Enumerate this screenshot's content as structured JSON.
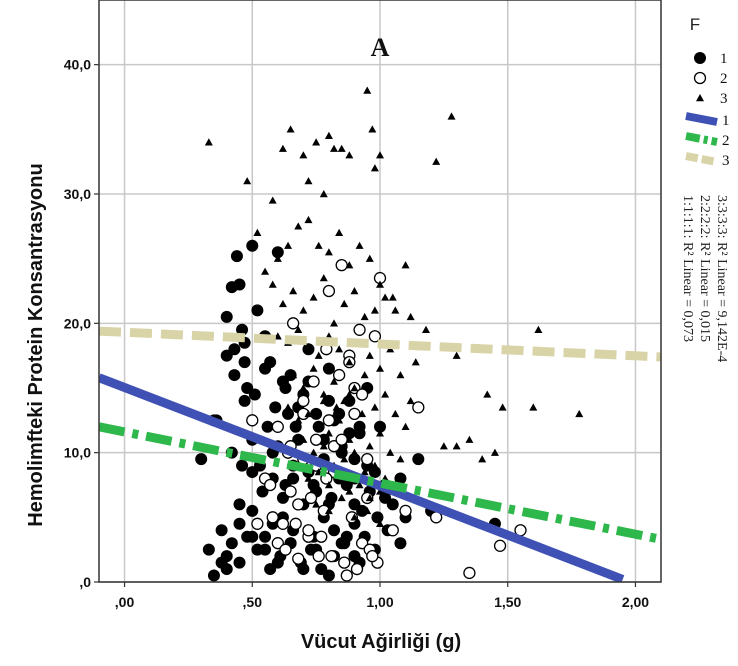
{
  "chart_data": {
    "type": "scatter",
    "title": "A",
    "xlabel": "Vücut Ağirliği (g)",
    "ylabel": "Hemolimfteki Protein Konsantrasyonu",
    "xlim": [
      -0.1,
      2.1
    ],
    "ylim": [
      0,
      45
    ],
    "xticks": [
      0,
      0.5,
      1.0,
      1.5,
      2.0
    ],
    "xtick_labels": [
      ",00",
      ",50",
      "1,00",
      "1,50",
      "2,00"
    ],
    "yticks": [
      0,
      10,
      20,
      30,
      40
    ],
    "ytick_labels": [
      ",0",
      "10,0",
      "20,0",
      "30,0",
      "40,0"
    ],
    "grid": true,
    "legend": {
      "title": "F",
      "placement": "right",
      "points": [
        {
          "label": "1",
          "marker": "filled-circle"
        },
        {
          "label": "2",
          "marker": "open-circle"
        },
        {
          "label": "3",
          "marker": "triangle"
        }
      ],
      "lines": [
        {
          "label": "1",
          "color": "#3f51b5",
          "style": "solid"
        },
        {
          "label": "2",
          "color": "#2eb84b",
          "style": "dash-dot"
        },
        {
          "label": "3",
          "color": "#d9d3a8",
          "style": "dashed"
        }
      ]
    },
    "r2_labels": [
      "1:1:1:1: R² Linear = 0,073",
      "2:2:2:2: R² Linear = 0,015",
      "3:3:3:3: R² Linear = 9,142E-4"
    ],
    "fit_lines": [
      {
        "group": "1",
        "color": "#3f51b5",
        "style": "solid",
        "x": [
          -0.1,
          1.95
        ],
        "y": [
          15.8,
          0.2
        ]
      },
      {
        "group": "2",
        "color": "#2eb84b",
        "style": "dash-dot",
        "x": [
          -0.1,
          2.1
        ],
        "y": [
          12.0,
          3.3
        ]
      },
      {
        "group": "3",
        "color": "#d9d3a8",
        "style": "dashed",
        "x": [
          -0.1,
          2.1
        ],
        "y": [
          19.4,
          17.4
        ]
      }
    ],
    "series": [
      {
        "name": "1",
        "marker": "filled-circle",
        "x": [
          0.33,
          0.35,
          0.38,
          0.4,
          0.42,
          0.44,
          0.45,
          0.46,
          0.47,
          0.48,
          0.5,
          0.52,
          0.55,
          0.57,
          0.6,
          0.62,
          0.64,
          0.65,
          0.67,
          0.7,
          0.72,
          0.75,
          0.78,
          0.8,
          0.82,
          0.85,
          0.88,
          0.9,
          0.92,
          0.95,
          0.98,
          1.0,
          1.02,
          1.05,
          1.08,
          1.1,
          1.15,
          0.36,
          0.4,
          0.43,
          0.47,
          0.5,
          0.53,
          0.56,
          0.58,
          0.6,
          0.63,
          0.66,
          0.68,
          0.72,
          0.75,
          0.78,
          0.81,
          0.84,
          0.87,
          0.9,
          0.93,
          0.96,
          0.99,
          1.02,
          0.38,
          0.42,
          0.45,
          0.5,
          0.55,
          0.58,
          0.62,
          0.66,
          0.7,
          0.74,
          0.78,
          0.82,
          0.86,
          0.9,
          0.94,
          0.98,
          1.03,
          1.08,
          1.2,
          1.45,
          0.4,
          0.45,
          0.48,
          0.52,
          0.57,
          0.61,
          0.65,
          0.69,
          0.73,
          0.77,
          0.82,
          0.87,
          0.92,
          0.97,
          0.42,
          0.46,
          0.5,
          0.54,
          0.58,
          0.62,
          0.66,
          0.7,
          0.74,
          0.8,
          0.85,
          0.9,
          0.95,
          0.4,
          0.43,
          0.47,
          0.51,
          0.55,
          0.59,
          0.63,
          0.68,
          0.72,
          0.76,
          0.8,
          0.84,
          0.88,
          0.92,
          0.3,
          0.35,
          0.45,
          0.5,
          0.55,
          0.6,
          0.65,
          0.7,
          0.75,
          0.8,
          0.85,
          0.9
        ],
        "y": [
          2.5,
          0.5,
          1.5,
          1.0,
          22.8,
          25.2,
          23.0,
          19.5,
          17.0,
          15.0,
          26.0,
          21.0,
          19.0,
          17.0,
          25.5,
          15.5,
          13.0,
          16.0,
          12.0,
          14.5,
          18.0,
          13.0,
          11.0,
          16.5,
          12.5,
          10.0,
          14.0,
          9.5,
          11.5,
          15.0,
          8.5,
          12.0,
          7.0,
          6.0,
          8.0,
          5.0,
          9.5,
          12.5,
          20.5,
          18.0,
          14.0,
          11.0,
          9.0,
          12.0,
          8.0,
          10.5,
          7.5,
          9.0,
          11.0,
          8.5,
          7.0,
          9.5,
          6.5,
          8.0,
          7.5,
          6.0,
          5.5,
          7.0,
          5.0,
          6.5,
          4.0,
          3.0,
          6.0,
          5.5,
          3.5,
          4.5,
          5.0,
          4.0,
          6.0,
          3.5,
          5.0,
          4.0,
          3.0,
          4.5,
          3.5,
          2.5,
          4.0,
          3.0,
          5.5,
          4.5,
          2.0,
          1.5,
          3.5,
          2.5,
          1.0,
          2.0,
          3.0,
          1.5,
          2.5,
          1.0,
          2.0,
          3.5,
          1.5,
          2.0,
          10.0,
          9.0,
          8.5,
          7.0,
          10.0,
          6.5,
          8.0,
          9.5,
          7.5,
          6.0,
          10.5,
          8.0,
          9.0,
          17.5,
          16.0,
          18.5,
          14.5,
          16.5,
          13.5,
          15.0,
          13.5,
          15.5,
          12.0,
          14.0,
          13.0,
          11.5,
          12.0,
          9.5,
          12.5,
          4.5,
          3.5,
          2.5,
          1.5,
          3.0,
          1.0,
          2.5,
          0.5,
          3.0,
          2.0
        ]
      },
      {
        "name": "2",
        "marker": "open-circle",
        "x": [
          0.5,
          0.55,
          0.58,
          0.62,
          0.65,
          0.68,
          0.7,
          0.72,
          0.75,
          0.78,
          0.8,
          0.82,
          0.85,
          0.88,
          0.9,
          0.92,
          0.95,
          0.98,
          1.0,
          1.05,
          1.1,
          1.15,
          1.22,
          1.35,
          1.47,
          1.55,
          0.52,
          0.57,
          0.6,
          0.64,
          0.67,
          0.7,
          0.73,
          0.76,
          0.79,
          0.82,
          0.86,
          0.89,
          0.93,
          0.96,
          0.99,
          1.02,
          0.6,
          0.65,
          0.7,
          0.75,
          0.8,
          0.85,
          0.9,
          0.95,
          0.63,
          0.68,
          0.72,
          0.77,
          0.81,
          0.87,
          0.91,
          0.97,
          0.66,
          0.74,
          0.79,
          0.84,
          0.88,
          0.93
        ],
        "y": [
          12.5,
          8.0,
          5.0,
          4.5,
          7.0,
          6.0,
          9.5,
          3.5,
          11.0,
          5.5,
          22.5,
          8.5,
          24.5,
          17.5,
          15.0,
          19.5,
          6.5,
          19.0,
          23.5,
          4.0,
          5.5,
          13.5,
          5.0,
          0.7,
          2.8,
          4.0,
          4.5,
          7.5,
          3.0,
          10.0,
          4.5,
          13.0,
          6.5,
          2.0,
          8.0,
          10.5,
          1.5,
          5.0,
          3.0,
          2.5,
          1.5,
          7.5,
          12.0,
          10.5,
          14.0,
          9.0,
          12.5,
          11.0,
          13.0,
          9.5,
          2.5,
          1.8,
          4.0,
          3.5,
          2.0,
          0.5,
          1.0,
          2.0,
          20.0,
          15.5,
          18.0,
          16.0,
          17.0,
          14.5
        ]
      },
      {
        "name": "3",
        "marker": "triangle",
        "x": [
          0.33,
          0.48,
          0.52,
          0.58,
          0.62,
          0.65,
          0.7,
          0.72,
          0.75,
          0.78,
          0.8,
          0.82,
          0.85,
          0.88,
          0.95,
          0.97,
          0.98,
          1.0,
          1.22,
          1.28,
          0.55,
          0.6,
          0.64,
          0.68,
          0.72,
          0.76,
          0.8,
          0.84,
          0.88,
          0.92,
          0.96,
          1.0,
          1.05,
          1.1,
          0.58,
          0.62,
          0.66,
          0.7,
          0.74,
          0.78,
          0.82,
          0.86,
          0.9,
          0.94,
          0.98,
          1.02,
          1.06,
          1.12,
          1.18,
          0.6,
          0.64,
          0.68,
          0.72,
          0.76,
          0.8,
          0.84,
          0.88,
          0.92,
          0.96,
          1.0,
          1.04,
          1.08,
          1.14,
          1.3,
          0.62,
          0.66,
          0.7,
          0.74,
          0.78,
          0.82,
          0.86,
          0.9,
          0.94,
          0.98,
          1.02,
          1.06,
          1.12,
          1.35,
          1.42,
          1.48,
          1.62,
          1.78,
          0.64,
          0.68,
          0.72,
          0.76,
          0.8,
          0.84,
          0.88,
          0.92,
          0.96,
          1.0,
          1.04,
          1.1,
          1.3,
          1.4,
          0.7,
          0.74,
          0.78,
          0.82,
          0.86,
          0.9,
          0.94,
          0.98,
          1.02,
          1.08,
          1.25,
          1.45,
          1.6,
          0.72,
          0.76,
          0.8,
          0.84,
          0.88,
          0.92,
          0.96,
          1.0,
          1.05,
          0.75,
          0.8,
          0.85,
          0.9,
          0.95,
          1.0,
          0.78,
          0.83,
          0.88,
          0.93
        ],
        "y": [
          34.0,
          31.0,
          27.0,
          29.5,
          33.5,
          35.0,
          33.0,
          31.0,
          34.0,
          30.0,
          34.5,
          33.5,
          33.5,
          33.0,
          38.0,
          35.0,
          32.0,
          33.0,
          32.5,
          36.0,
          24.0,
          25.0,
          26.0,
          27.5,
          28.0,
          26.0,
          25.5,
          27.0,
          24.5,
          26.0,
          25.0,
          23.0,
          22.0,
          24.5,
          23.0,
          21.5,
          22.5,
          21.0,
          22.0,
          23.5,
          20.0,
          21.5,
          22.5,
          20.5,
          21.0,
          22.0,
          21.0,
          20.5,
          19.5,
          19.0,
          18.5,
          19.5,
          18.0,
          17.5,
          19.0,
          18.0,
          17.0,
          18.5,
          17.5,
          16.5,
          18.0,
          16.0,
          17.0,
          17.5,
          15.5,
          16.0,
          15.0,
          16.5,
          14.5,
          15.5,
          14.0,
          15.0,
          16.0,
          13.5,
          14.5,
          13.0,
          14.0,
          11.0,
          14.5,
          13.5,
          19.5,
          13.0,
          13.5,
          12.5,
          13.0,
          12.0,
          11.5,
          12.5,
          11.0,
          12.0,
          10.5,
          11.5,
          10.0,
          12.0,
          10.5,
          9.5,
          11.0,
          10.0,
          10.5,
          9.0,
          9.5,
          10.0,
          8.5,
          9.0,
          8.0,
          9.5,
          10.5,
          10.0,
          13.5,
          8.0,
          8.5,
          7.5,
          8.0,
          7.0,
          7.5,
          6.5,
          7.0,
          6.0,
          6.0,
          5.5,
          6.5,
          5.0,
          5.5,
          4.5,
          14.0,
          13.5,
          14.5,
          13.0
        ]
      }
    ]
  }
}
